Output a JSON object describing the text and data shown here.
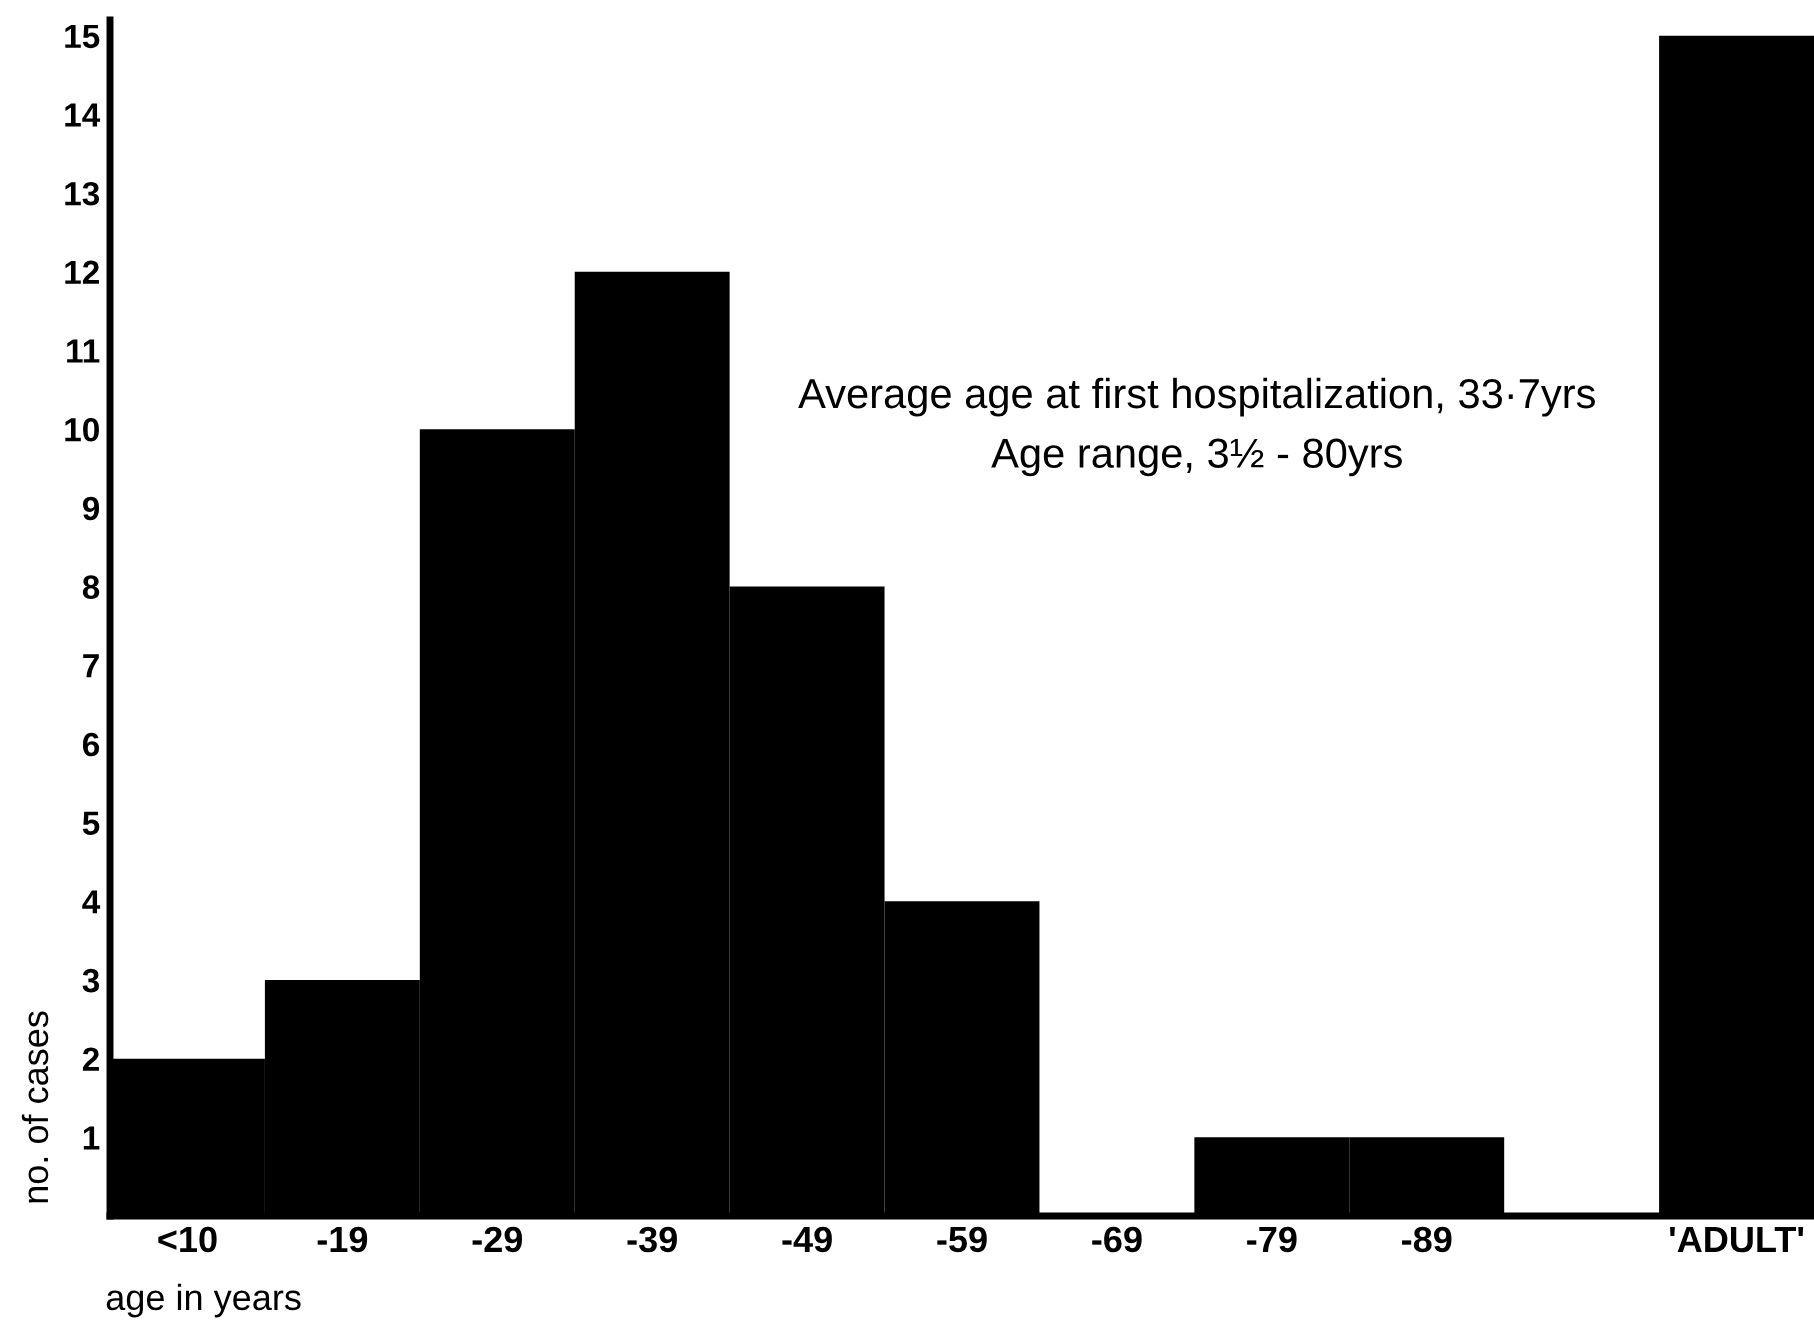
{
  "chart_data": {
    "type": "bar",
    "xlabel": "age in years",
    "ylabel": "no. of cases",
    "categories": [
      "<10",
      "-19",
      "-29",
      "-39",
      "-49",
      "-59",
      "-69",
      "-79",
      "-89",
      null,
      "'ADULT'"
    ],
    "values": [
      2,
      3,
      10,
      12,
      8,
      4,
      0,
      1,
      1,
      null,
      15
    ],
    "color": "#000000",
    "ylim": [
      0,
      15.2
    ],
    "yticks": [
      1,
      2,
      3,
      4,
      5,
      6,
      7,
      8,
      9,
      10,
      11,
      12,
      13,
      14,
      15
    ],
    "annotations": [
      "Average age at first hospitalization, 33·7yrs",
      "Age range, 3½ - 80yrs"
    ],
    "grid": false,
    "legend": false
  }
}
